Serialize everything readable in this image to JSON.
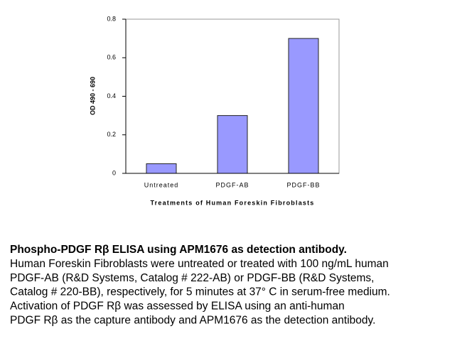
{
  "chart_data": {
    "type": "bar",
    "categories": [
      "Untreated",
      "PDGF-AB",
      "PDGF-BB"
    ],
    "values": [
      0.05,
      0.3,
      0.7
    ],
    "color": "#9999ff",
    "ylim": [
      0,
      0.8
    ],
    "yticks": [
      0,
      0.2,
      0.4,
      0.6,
      0.8
    ],
    "x_label": "Treatments of Human Foreskin Fibroblasts",
    "y_label": "OD 490 - 690",
    "grid": false
  },
  "caption": {
    "title": "Phospho-PDGF Rβ ELISA using APM1676 as detection antibody.",
    "lines": [
      "Human Foreskin Fibroblasts were untreated or treated with 100 ng/mL human",
      "PDGF-AB (R&D Systems, Catalog # 222-AB) or PDGF-BB (R&D Systems,",
      "Catalog # 220-BB), respectively, for 5 minutes at 37° C in serum-free medium.",
      "Activation of PDGF Rβ was assessed by ELISA using an anti-human",
      "PDGF Rβ as the capture antibody and APM1676 as the detection antibody."
    ]
  }
}
